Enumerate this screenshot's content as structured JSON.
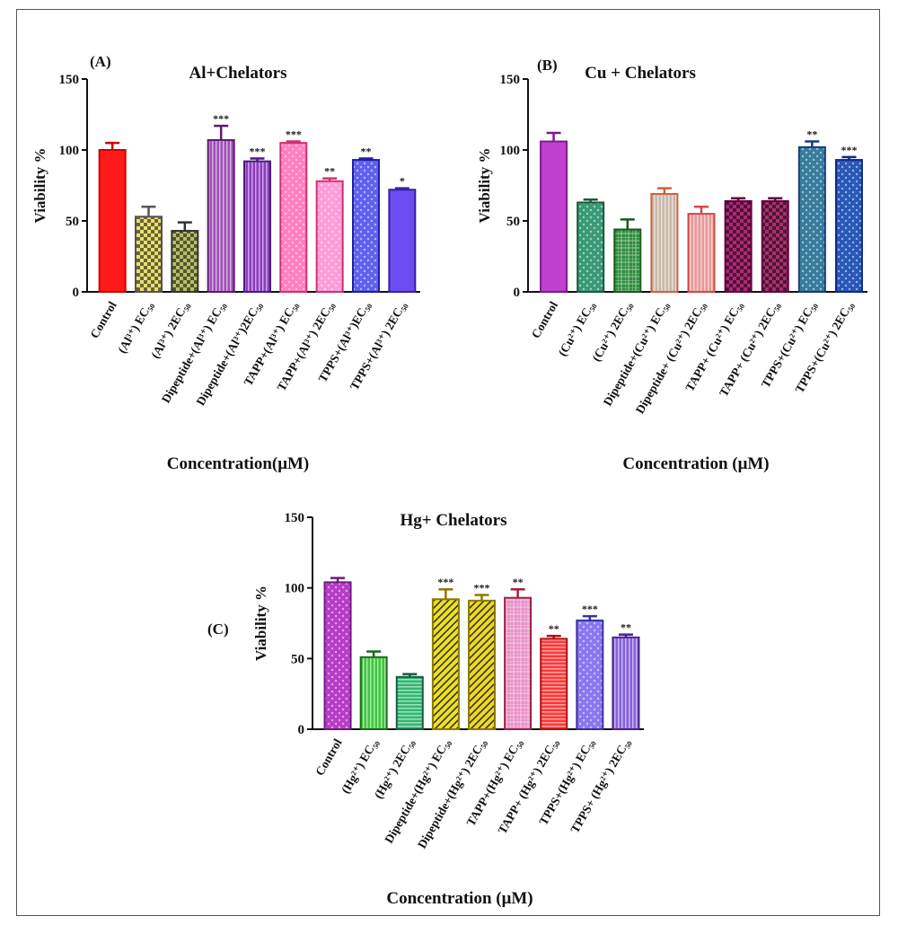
{
  "chart_data": [
    {
      "type": "bar",
      "panel_label": "(A)",
      "title": "Al+Chelators",
      "ylabel": "Viability %",
      "xlabel": "Concentration(μM)",
      "ylim": [
        0,
        150
      ],
      "yticks": [
        "0",
        "50",
        "100",
        "150"
      ],
      "categories": [
        "Control",
        "(Al³⁺) EC₅₀",
        "(Al³⁺) 2EC₅₀",
        "Dipeptide+(Al³⁺) EC₅₀",
        "Dipeptide+(Al³⁺)2EC₅₀",
        "TAPP+(Al³⁺) EC₅₀",
        "TAPP+(Al³⁺) 2EC₅₀",
        "TPPS+(Al³⁺)EC₅₀",
        "TPPS+(Al³⁺) 2EC₅₀"
      ],
      "values": [
        100,
        53,
        43,
        107,
        92,
        105,
        78,
        93,
        72
      ],
      "errors": [
        5,
        7,
        6,
        10,
        2,
        1,
        2,
        1,
        1
      ],
      "significance": [
        "",
        "",
        "",
        "***",
        "***",
        "***",
        "**",
        "**",
        "*"
      ],
      "colors": [
        "#ff1a1a",
        "#e8e070",
        "#b8c068",
        "#a050b8",
        "#8c3cc0",
        "#ff7fbf",
        "#ff9cd8",
        "#6060f0",
        "#6a4cf0"
      ]
    },
    {
      "type": "bar",
      "panel_label": "(B)",
      "title": "Cu + Chelators",
      "ylabel": "Viability %",
      "xlabel": "Concentration (μM)",
      "ylim": [
        0,
        150
      ],
      "yticks": [
        "0",
        "50",
        "100",
        "150"
      ],
      "categories": [
        "Control",
        "(Cu²⁺) EC₅₀",
        "(Cu²⁺) 2EC₅₀",
        "Dipeptide+(Cu²⁺) EC₅₀",
        "Dipeptide+ (Cu²⁺) 2EC₅₀",
        "TAPP+ (Cu²⁺) EC₅₀",
        "TAPP+ (Cu²⁺) 2EC₅₀",
        "TPPS+(Cu²⁺) EC₅₀",
        "TPPS+(Cu²⁺) 2EC₅₀"
      ],
      "values": [
        106,
        63,
        44,
        69,
        55,
        64,
        64,
        102,
        93
      ],
      "errors": [
        6,
        2,
        7,
        4,
        5,
        2,
        2,
        4,
        2
      ],
      "significance": [
        "",
        "",
        "",
        "",
        "",
        "",
        "",
        "**",
        "***"
      ],
      "colors": [
        "#c040d0",
        "#3a9a78",
        "#2c8c3c",
        "#c8b8a8",
        "#e89898",
        "#b02878",
        "#a83070",
        "#387c9c",
        "#2858b8"
      ]
    },
    {
      "type": "bar",
      "panel_label": "(C)",
      "title": "Hg+ Chelators",
      "ylabel": "Viability %",
      "xlabel": "Concentration (μM)",
      "ylim": [
        0,
        150
      ],
      "yticks": [
        "0",
        "50",
        "100",
        "150"
      ],
      "categories": [
        "Control",
        "(Hg²⁺) EC₅₀",
        "(Hg²⁺) 2EC₅₀",
        "Dipeptide+(Hg²⁺) EC₅₀",
        "Dipeptide+(Hg²⁺) 2EC₅₀",
        "TAPP+(Hg²⁺) EC₅₀",
        "TAPP+ (Hg²⁺) 2EC₅₀",
        "TPPS+(Hg²⁺) EC₅₀",
        "TPPS+ (Hg²⁺) 2EC₅₀"
      ],
      "values": [
        104,
        51,
        37,
        92,
        91,
        93,
        64,
        77,
        65
      ],
      "errors": [
        3,
        4,
        2,
        7,
        4,
        6,
        2,
        3,
        2
      ],
      "significance": [
        "",
        "",
        "",
        "***",
        "***",
        "**",
        "**",
        "***",
        "**"
      ],
      "colors": [
        "#b83cc8",
        "#3cc83c",
        "#30b870",
        "#f0e020",
        "#f0d820",
        "#e890c8",
        "#ff3838",
        "#8878f0",
        "#8860e0"
      ]
    }
  ]
}
